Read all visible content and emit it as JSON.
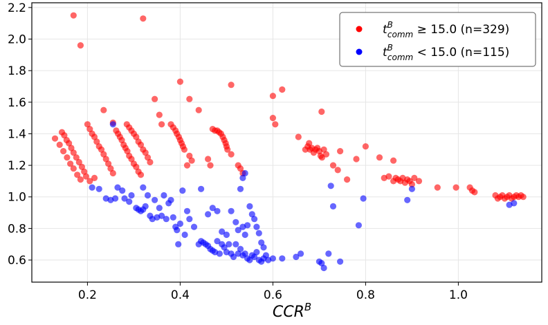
{
  "chart_data": {
    "type": "scatter",
    "title": "",
    "xlabel": "CCR",
    "xlabel_superscript": "B",
    "ylabel": "",
    "xlim": [
      0.08,
      1.18
    ],
    "ylim": [
      0.46,
      2.23
    ],
    "xticks": [
      0.2,
      0.4,
      0.6,
      0.8,
      1.0
    ],
    "xtick_labels": [
      "0.2",
      "0.4",
      "0.6",
      "0.8",
      "1.0"
    ],
    "yticks": [
      0.6,
      0.8,
      1.0,
      1.2,
      1.4,
      1.6,
      1.8,
      2.0,
      2.2
    ],
    "ytick_labels": [
      "0.6",
      "0.8",
      "1.0",
      "1.2",
      "1.4",
      "1.6",
      "1.8",
      "2.0",
      "2.2"
    ],
    "grid": true,
    "legend_position": "top-right",
    "series": [
      {
        "name": "t_comm^B ≥ 15.0 (n=329)",
        "legend_base": "t",
        "legend_sup": "B",
        "legend_sub": "comm",
        "legend_rest": " ≥ 15.0 (n=329)",
        "color": "#ff0000",
        "points": [
          [
            0.17,
            2.15
          ],
          [
            0.185,
            1.96
          ],
          [
            0.32,
            2.13
          ],
          [
            0.13,
            1.37
          ],
          [
            0.14,
            1.33
          ],
          [
            0.148,
            1.29
          ],
          [
            0.156,
            1.25
          ],
          [
            0.163,
            1.21
          ],
          [
            0.17,
            1.18
          ],
          [
            0.178,
            1.14
          ],
          [
            0.185,
            1.11
          ],
          [
            0.145,
            1.41
          ],
          [
            0.15,
            1.39
          ],
          [
            0.155,
            1.36
          ],
          [
            0.16,
            1.34
          ],
          [
            0.165,
            1.31
          ],
          [
            0.17,
            1.28
          ],
          [
            0.176,
            1.25
          ],
          [
            0.182,
            1.22
          ],
          [
            0.188,
            1.19
          ],
          [
            0.193,
            1.16
          ],
          [
            0.197,
            1.13
          ],
          [
            0.2,
            1.46
          ],
          [
            0.205,
            1.43
          ],
          [
            0.21,
            1.4
          ],
          [
            0.215,
            1.38
          ],
          [
            0.22,
            1.35
          ],
          [
            0.225,
            1.32
          ],
          [
            0.23,
            1.3
          ],
          [
            0.235,
            1.27
          ],
          [
            0.24,
            1.24
          ],
          [
            0.245,
            1.21
          ],
          [
            0.25,
            1.18
          ],
          [
            0.255,
            1.15
          ],
          [
            0.205,
            1.1
          ],
          [
            0.215,
            1.12
          ],
          [
            0.235,
            1.55
          ],
          [
            0.255,
            1.47
          ],
          [
            0.262,
            1.42
          ],
          [
            0.266,
            1.4
          ],
          [
            0.27,
            1.38
          ],
          [
            0.274,
            1.36
          ],
          [
            0.278,
            1.33
          ],
          [
            0.282,
            1.31
          ],
          [
            0.286,
            1.29
          ],
          [
            0.29,
            1.26
          ],
          [
            0.295,
            1.24
          ],
          [
            0.3,
            1.21
          ],
          [
            0.305,
            1.19
          ],
          [
            0.31,
            1.16
          ],
          [
            0.315,
            1.14
          ],
          [
            0.285,
            1.46
          ],
          [
            0.29,
            1.44
          ],
          [
            0.295,
            1.42
          ],
          [
            0.3,
            1.4
          ],
          [
            0.305,
            1.38
          ],
          [
            0.31,
            1.35
          ],
          [
            0.315,
            1.33
          ],
          [
            0.32,
            1.3
          ],
          [
            0.325,
            1.28
          ],
          [
            0.33,
            1.25
          ],
          [
            0.335,
            1.22
          ],
          [
            0.345,
            1.62
          ],
          [
            0.355,
            1.52
          ],
          [
            0.36,
            1.46
          ],
          [
            0.38,
            1.46
          ],
          [
            0.385,
            1.44
          ],
          [
            0.39,
            1.42
          ],
          [
            0.393,
            1.4
          ],
          [
            0.397,
            1.38
          ],
          [
            0.4,
            1.36
          ],
          [
            0.403,
            1.34
          ],
          [
            0.406,
            1.32
          ],
          [
            0.409,
            1.3
          ],
          [
            0.4,
            1.73
          ],
          [
            0.42,
            1.62
          ],
          [
            0.42,
            1.26
          ],
          [
            0.425,
            1.23
          ],
          [
            0.415,
            1.2
          ],
          [
            0.44,
            1.55
          ],
          [
            0.47,
            1.43
          ],
          [
            0.475,
            1.42
          ],
          [
            0.48,
            1.42
          ],
          [
            0.484,
            1.41
          ],
          [
            0.488,
            1.4
          ],
          [
            0.492,
            1.38
          ],
          [
            0.495,
            1.36
          ],
          [
            0.498,
            1.34
          ],
          [
            0.5,
            1.32
          ],
          [
            0.502,
            1.3
          ],
          [
            0.46,
            1.24
          ],
          [
            0.465,
            1.2
          ],
          [
            0.51,
            1.71
          ],
          [
            0.51,
            1.27
          ],
          [
            0.525,
            1.2
          ],
          [
            0.53,
            1.18
          ],
          [
            0.535,
            1.15
          ],
          [
            0.6,
            1.64
          ],
          [
            0.62,
            1.68
          ],
          [
            0.6,
            1.5
          ],
          [
            0.605,
            1.46
          ],
          [
            0.655,
            1.38
          ],
          [
            0.705,
            1.54
          ],
          [
            0.67,
            1.3
          ],
          [
            0.675,
            1.32
          ],
          [
            0.678,
            1.34
          ],
          [
            0.68,
            1.3
          ],
          [
            0.684,
            1.31
          ],
          [
            0.688,
            1.28
          ],
          [
            0.692,
            1.3
          ],
          [
            0.696,
            1.31
          ],
          [
            0.7,
            1.29
          ],
          [
            0.703,
            1.26
          ],
          [
            0.706,
            1.25
          ],
          [
            0.71,
            1.3
          ],
          [
            0.715,
            1.27
          ],
          [
            0.745,
            1.29
          ],
          [
            0.78,
            1.24
          ],
          [
            0.8,
            1.32
          ],
          [
            0.73,
            1.2
          ],
          [
            0.74,
            1.17
          ],
          [
            0.76,
            1.11
          ],
          [
            0.83,
            1.25
          ],
          [
            0.86,
            1.23
          ],
          [
            0.84,
            1.12
          ],
          [
            0.85,
            1.13
          ],
          [
            0.86,
            1.1
          ],
          [
            0.865,
            1.12
          ],
          [
            0.87,
            1.11
          ],
          [
            0.875,
            1.1
          ],
          [
            0.88,
            1.12
          ],
          [
            0.885,
            1.09
          ],
          [
            0.89,
            1.11
          ],
          [
            0.895,
            1.1
          ],
          [
            0.9,
            1.08
          ],
          [
            0.905,
            1.12
          ],
          [
            0.915,
            1.1
          ],
          [
            0.955,
            1.06
          ],
          [
            0.995,
            1.06
          ],
          [
            1.025,
            1.06
          ],
          [
            1.03,
            1.04
          ],
          [
            1.035,
            1.03
          ],
          [
            1.08,
            1.01
          ],
          [
            1.085,
            0.99
          ],
          [
            1.09,
            1.0
          ],
          [
            1.095,
            1.01
          ],
          [
            1.1,
            0.99
          ],
          [
            1.105,
            1.0
          ],
          [
            1.11,
            1.01
          ],
          [
            1.115,
            0.99
          ],
          [
            1.12,
            1.0
          ],
          [
            1.125,
            1.01
          ],
          [
            1.13,
            1.0
          ],
          [
            1.135,
            1.01
          ],
          [
            1.14,
            1.0
          ]
        ]
      },
      {
        "name": "t_comm^B < 15.0 (n=115)",
        "legend_base": "t",
        "legend_sup": "B",
        "legend_sub": "comm",
        "legend_rest": " < 15.0 (n=115)",
        "color": "#0000ff",
        "points": [
          [
            0.255,
            1.46
          ],
          [
            0.21,
            1.06
          ],
          [
            0.225,
            1.05
          ],
          [
            0.24,
            0.99
          ],
          [
            0.25,
            0.98
          ],
          [
            0.26,
            0.99
          ],
          [
            0.265,
            1.06
          ],
          [
            0.275,
            1.04
          ],
          [
            0.28,
            0.99
          ],
          [
            0.29,
            0.97
          ],
          [
            0.295,
            1.01
          ],
          [
            0.305,
            0.93
          ],
          [
            0.31,
            0.92
          ],
          [
            0.315,
            0.91
          ],
          [
            0.32,
            0.92
          ],
          [
            0.325,
            0.94
          ],
          [
            0.32,
            1.06
          ],
          [
            0.33,
            1.01
          ],
          [
            0.335,
            0.88
          ],
          [
            0.34,
            0.86
          ],
          [
            0.345,
            0.98
          ],
          [
            0.35,
            0.87
          ],
          [
            0.355,
            0.93
          ],
          [
            0.36,
            0.88
          ],
          [
            0.365,
            1.01
          ],
          [
            0.37,
            0.86
          ],
          [
            0.375,
            0.96
          ],
          [
            0.38,
            0.98
          ],
          [
            0.385,
            0.87
          ],
          [
            0.39,
            0.81
          ],
          [
            0.393,
            0.79
          ],
          [
            0.396,
            0.7
          ],
          [
            0.4,
            0.83
          ],
          [
            0.405,
            1.04
          ],
          [
            0.41,
            0.76
          ],
          [
            0.415,
            0.91
          ],
          [
            0.42,
            0.86
          ],
          [
            0.43,
            0.81
          ],
          [
            0.44,
            0.7
          ],
          [
            0.445,
            0.72
          ],
          [
            0.45,
            0.71
          ],
          [
            0.455,
            0.7
          ],
          [
            0.46,
            0.69
          ],
          [
            0.465,
            0.67
          ],
          [
            0.47,
            0.66
          ],
          [
            0.475,
            0.65
          ],
          [
            0.48,
            0.72
          ],
          [
            0.485,
            0.64
          ],
          [
            0.49,
            0.7
          ],
          [
            0.495,
            0.68
          ],
          [
            0.5,
            0.65
          ],
          [
            0.505,
            0.7
          ],
          [
            0.51,
            0.64
          ],
          [
            0.515,
            0.62
          ],
          [
            0.52,
            0.7
          ],
          [
            0.525,
            0.64
          ],
          [
            0.53,
            0.67
          ],
          [
            0.535,
            0.63
          ],
          [
            0.54,
            0.64
          ],
          [
            0.545,
            0.61
          ],
          [
            0.55,
            0.6
          ],
          [
            0.555,
            0.63
          ],
          [
            0.56,
            0.62
          ],
          [
            0.565,
            0.65
          ],
          [
            0.57,
            0.6
          ],
          [
            0.575,
            0.59
          ],
          [
            0.58,
            0.61
          ],
          [
            0.585,
            0.63
          ],
          [
            0.59,
            0.6
          ],
          [
            0.6,
            0.61
          ],
          [
            0.62,
            0.61
          ],
          [
            0.65,
            0.62
          ],
          [
            0.66,
            0.64
          ],
          [
            0.7,
            0.59
          ],
          [
            0.705,
            0.58
          ],
          [
            0.71,
            0.55
          ],
          [
            0.745,
            0.59
          ],
          [
            0.445,
            1.05
          ],
          [
            0.46,
            0.89
          ],
          [
            0.47,
            0.93
          ],
          [
            0.48,
            0.91
          ],
          [
            0.49,
            0.78
          ],
          [
            0.5,
            0.76
          ],
          [
            0.51,
            0.91
          ],
          [
            0.52,
            0.84
          ],
          [
            0.525,
            0.79
          ],
          [
            0.53,
            1.05
          ],
          [
            0.535,
            0.81
          ],
          [
            0.54,
            0.76
          ],
          [
            0.545,
            0.82
          ],
          [
            0.55,
            0.94
          ],
          [
            0.555,
            0.89
          ],
          [
            0.56,
            0.86
          ],
          [
            0.565,
            0.81
          ],
          [
            0.57,
            0.77
          ],
          [
            0.575,
            0.71
          ],
          [
            0.58,
            0.68
          ],
          [
            0.535,
            1.12
          ],
          [
            0.54,
            1.15
          ],
          [
            0.72,
            0.64
          ],
          [
            0.725,
            1.07
          ],
          [
            0.73,
            0.94
          ],
          [
            0.785,
            0.82
          ],
          [
            0.795,
            0.99
          ],
          [
            0.89,
            0.98
          ],
          [
            0.9,
            1.05
          ],
          [
            1.11,
            0.95
          ],
          [
            1.12,
            0.96
          ]
        ]
      }
    ]
  }
}
